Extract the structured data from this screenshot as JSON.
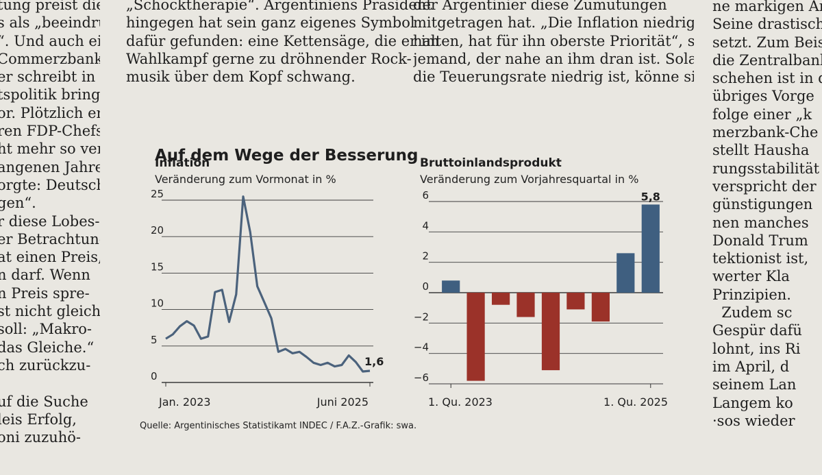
{
  "article": {
    "col1": [
      "tung preist die",
      "s als „beeindru-",
      "“. Und auch ein",
      "Commerzbank-",
      "er schreibt in der",
      "tspolitik bringe",
      "or. Plötzlich er-",
      "ren FDP-Chefs",
      "ht mehr so ver-",
      "angenen Jahres",
      "orgte: Deutsch-",
      "gen“.",
      "r diese Lobes-",
      "er Betrachtung",
      "at einen Preis,",
      "n darf. Wenn",
      "n Preis spre-",
      "st nicht gleich",
      "soll: „Makro-",
      "das Gleiche.“",
      "ch zurückzu-",
      "",
      "uf die Suche",
      "leis Erfolg,",
      "oni zuzuhö-"
    ],
    "col2": [
      "„Schocktherapie“. Argentiniens Präsident",
      "hingegen hat sein ganz eigenes Symbol",
      "dafür gefunden: eine Kettensäge, die er im",
      "Wahlkampf gerne zu dröhnender Rock-",
      "musik über dem Kopf schwang."
    ],
    "col3": [
      "der Argentinier diese Zumutungen",
      "mitgetragen hat. „Die Inflation niedrig zu",
      "halten, hat für ihn oberste Priorität“, sagt",
      "jemand, der nahe an ihm dran ist. Solange",
      "die Teuerungsrate niedrig ist, könne sich"
    ],
    "col4": [
      "ne markigen Ar",
      "Seine drastischst",
      "setzt. Zum Beis",
      "die Zentralbank",
      "schehen ist in d",
      "übriges Vorge",
      "folge einer „k",
      "merzbank-Che",
      "stellt Hausha",
      "rungsstabilität",
      "verspricht der",
      "günstigungen",
      "nen manches",
      "Donald Trum",
      "tektionist ist,",
      "werter Kla",
      "Prinzipien.",
      "  Zudem sc",
      "Gespür dafü",
      "lohnt, ins Ri",
      "im April, d",
      "seinem Lan",
      "Langem ko",
      "·sos wieder"
    ]
  },
  "figure_title": "Auf dem Wege der Besserung",
  "source": "Quelle: Argentinisches Statistikamt INDEC / F.A.Z.-Grafik: swa.",
  "colors": {
    "line": "#4b627c",
    "positive": "#3f5f80",
    "negative": "#9b3229",
    "grid": "#3a3a3a"
  },
  "chart_data": [
    {
      "type": "line",
      "title": "Inflation",
      "subtitle": "Veränderung zum Vormonat in %",
      "ylim": [
        0,
        25
      ],
      "yticks": [
        "0",
        "5",
        "10",
        "15",
        "20",
        "25"
      ],
      "ytick_values": [
        0,
        5,
        10,
        15,
        20,
        25
      ],
      "xtick_labels": [
        "Jan. 2023",
        "Juni 2025"
      ],
      "end_label": "1,6",
      "series": [
        {
          "name": "Inflation",
          "values": [
            6.0,
            6.6,
            7.7,
            8.4,
            7.8,
            6.0,
            6.3,
            12.4,
            12.7,
            8.3,
            12.1,
            25.5,
            20.6,
            13.2,
            11.0,
            8.8,
            4.2,
            4.6,
            4.0,
            4.2,
            3.5,
            2.7,
            2.4,
            2.7,
            2.2,
            2.4,
            3.7,
            2.8,
            1.5,
            1.6
          ]
        }
      ]
    },
    {
      "type": "bar",
      "title": "Bruttoinlandsprodukt",
      "subtitle": "Veränderung zum Vorjahresquartal in %",
      "ylim": [
        -6,
        6
      ],
      "yticks": [
        "6",
        "4",
        "2",
        "0",
        "−2",
        "−4",
        "−6"
      ],
      "ytick_values": [
        6,
        4,
        2,
        0,
        -2,
        -4,
        -6
      ],
      "xtick_labels": [
        "1. Qu. 2023",
        "1. Qu. 2025"
      ],
      "categories": [
        "Q1 2023",
        "Q2 2023",
        "Q3 2023",
        "Q4 2023",
        "Q1 2024",
        "Q2 2024",
        "Q3 2024",
        "Q4 2024",
        "Q1 2025"
      ],
      "values": [
        0.8,
        -5.8,
        -0.8,
        -1.6,
        -5.1,
        -1.1,
        -1.9,
        2.6,
        5.8
      ],
      "value_label": "5,8"
    }
  ]
}
